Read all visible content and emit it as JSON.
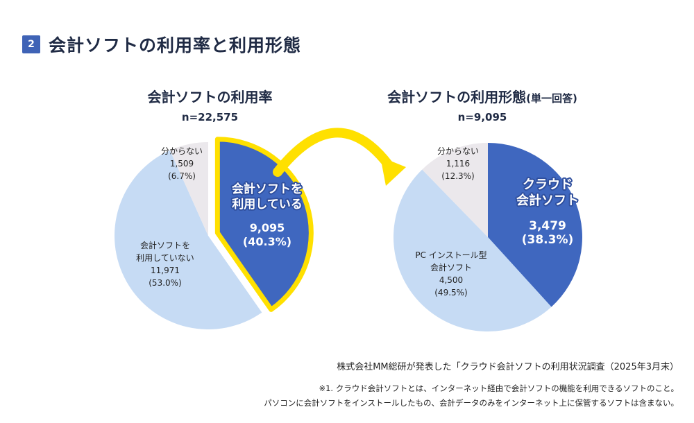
{
  "header": {
    "number": "2",
    "title": "会計ソフトの利用率と利用形態"
  },
  "colors": {
    "dark_blue": "#3f67bf",
    "light_blue": "#c6dbf4",
    "gray": "#ebe8ec",
    "highlight": "#ffe000",
    "badge": "#3f63b6"
  },
  "chart_data": [
    {
      "type": "pie",
      "title": "会計ソフトの利用率",
      "n_label": "n=22,575",
      "slices": [
        {
          "label_lines": [
            "会計ソフトを",
            "利用している"
          ],
          "value_text": "9,095",
          "pct_text": "(40.3%)",
          "value": 9095,
          "percent": 40.3,
          "color": "#3f67bf",
          "highlighted": true
        },
        {
          "label_lines": [
            "会計ソフトを",
            "利用していない"
          ],
          "value_text": "11,971",
          "pct_text": "(53.0%)",
          "value": 11971,
          "percent": 53.0,
          "color": "#c6dbf4"
        },
        {
          "label_lines": [
            "分からない"
          ],
          "value_text": "1,509",
          "pct_text": "(6.7%)",
          "value": 1509,
          "percent": 6.7,
          "color": "#ebe8ec"
        }
      ]
    },
    {
      "type": "pie",
      "title": "会計ソフトの利用形態",
      "title_suffix": "(単一回答)",
      "n_label": "n=9,095",
      "slices": [
        {
          "label_lines": [
            "クラウド",
            "会計ソフト"
          ],
          "value_text": "3,479",
          "pct_text": "(38.3%)",
          "value": 3479,
          "percent": 38.3,
          "color": "#3f67bf"
        },
        {
          "label_lines": [
            "PC インストール型",
            "会計ソフト"
          ],
          "value_text": "4,500",
          "pct_text": "(49.5%)",
          "value": 4500,
          "percent": 49.5,
          "color": "#c6dbf4"
        },
        {
          "label_lines": [
            "分からない"
          ],
          "value_text": "1,116",
          "pct_text": "(12.3%)",
          "value": 1116,
          "percent": 12.3,
          "color": "#ebe8ec"
        }
      ]
    }
  ],
  "source": "株式会社MM総研が発表した「クラウド会計ソフトの利用状況調査（2025年3月末）",
  "notes": [
    "※1. クラウド会計ソフトとは、インターネット経由で会計ソフトの機能を利用できるソフトのこと。",
    "パソコンに会計ソフトをインストールしたもの、会計データのみをインターネット上に保管するソフトは含まない。"
  ]
}
